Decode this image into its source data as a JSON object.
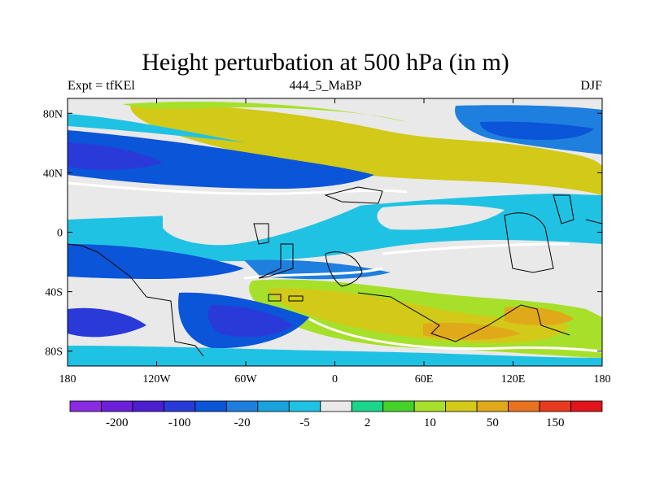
{
  "title": "Height perturbation at 500 hPa (in m)",
  "subtitle_left": "Expt = tfKEl",
  "subtitle_center": "444_5_MaBP",
  "subtitle_right": "DJF",
  "map": {
    "projection": "cylindrical equidistant",
    "lon_range": [
      -180,
      180
    ],
    "lat_range": [
      -90,
      90
    ],
    "x_ticks": [
      {
        "value": -180,
        "label": "180"
      },
      {
        "value": -120,
        "label": "120W"
      },
      {
        "value": -60,
        "label": "60W"
      },
      {
        "value": 0,
        "label": "0"
      },
      {
        "value": 60,
        "label": "60E"
      },
      {
        "value": 120,
        "label": "120E"
      },
      {
        "value": 180,
        "label": "180"
      }
    ],
    "y_ticks": [
      {
        "value": 80,
        "label": "80N"
      },
      {
        "value": 40,
        "label": "40N"
      },
      {
        "value": 0,
        "label": "0"
      },
      {
        "value": -40,
        "label": "40S"
      },
      {
        "value": -80,
        "label": "80S"
      }
    ],
    "field_name": "height perturbation",
    "units": "m",
    "blobs": [
      {
        "lon": -150,
        "lat": 55,
        "rx": 40,
        "ry": 30,
        "level": 2
      },
      {
        "lon": -140,
        "lat": 48,
        "rx": 60,
        "ry": 24,
        "level": 4
      },
      {
        "lon": -120,
        "lat": 50,
        "rx": 55,
        "ry": 12,
        "level": 3
      },
      {
        "lon": -150,
        "lat": 52,
        "rx": 25,
        "ry": 12,
        "level": 2
      },
      {
        "lon": -60,
        "lat": 70,
        "rx": 100,
        "ry": 15,
        "level": 9
      },
      {
        "lon": 0,
        "lat": 60,
        "rx": 60,
        "ry": 12,
        "level": 10
      },
      {
        "lon": 40,
        "lat": 58,
        "rx": 70,
        "ry": 16,
        "level": 11
      },
      {
        "lon": 30,
        "lat": 56,
        "rx": 15,
        "ry": 5,
        "level": 12
      },
      {
        "lon": 70,
        "lat": 40,
        "rx": 30,
        "ry": 8,
        "level": 11
      },
      {
        "lon": 100,
        "lat": 35,
        "rx": 55,
        "ry": 10,
        "level": 10
      },
      {
        "lon": 140,
        "lat": 75,
        "rx": 45,
        "ry": 12,
        "level": 4
      },
      {
        "lon": 150,
        "lat": 70,
        "rx": 30,
        "ry": 10,
        "level": 3
      },
      {
        "lon": 100,
        "lat": 10,
        "rx": 80,
        "ry": 10,
        "level": 9
      },
      {
        "lon": -160,
        "lat": 25,
        "rx": 25,
        "ry": 8,
        "level": 9
      },
      {
        "lon": -160,
        "lat": -20,
        "rx": 20,
        "ry": 10,
        "level": 3
      },
      {
        "lon": -130,
        "lat": -20,
        "rx": 35,
        "ry": 10,
        "level": 3
      },
      {
        "lon": -120,
        "lat": -40,
        "rx": 50,
        "ry": 6,
        "level": 10
      },
      {
        "lon": -30,
        "lat": -30,
        "rx": 25,
        "ry": 8,
        "level": 4
      },
      {
        "lon": 50,
        "lat": -25,
        "rx": 40,
        "ry": 10,
        "level": 3
      },
      {
        "lon": 80,
        "lat": -25,
        "rx": 40,
        "ry": 8,
        "level": 10
      },
      {
        "lon": -20,
        "lat": -55,
        "rx": 70,
        "ry": 12,
        "level": 10
      },
      {
        "lon": 60,
        "lat": -65,
        "rx": 40,
        "ry": 10,
        "level": 11
      },
      {
        "lon": 130,
        "lat": -60,
        "rx": 30,
        "ry": 8,
        "level": 12
      },
      {
        "lon": -140,
        "lat": -65,
        "rx": 35,
        "ry": 10,
        "level": 3
      },
      {
        "lon": -70,
        "lat": -60,
        "rx": 40,
        "ry": 14,
        "level": 2
      },
      {
        "lon": -100,
        "lat": -55,
        "rx": 8,
        "ry": 6,
        "level": 8
      }
    ]
  },
  "colorbar": {
    "colors": [
      "#8a2be2",
      "#6b1fd6",
      "#4b1fd0",
      "#2a3ad8",
      "#0b55d8",
      "#1e7fde",
      "#1aa2dd",
      "#20c2e4",
      "#e9e9e9",
      "#19d68a",
      "#45d12a",
      "#a7e02a",
      "#d2c918",
      "#e0a91a",
      "#e8721e",
      "#e83a1e",
      "#e0141a"
    ],
    "labels": [
      "-200",
      "-100",
      "-20",
      "-5",
      "2",
      "10",
      "50",
      "150"
    ]
  }
}
